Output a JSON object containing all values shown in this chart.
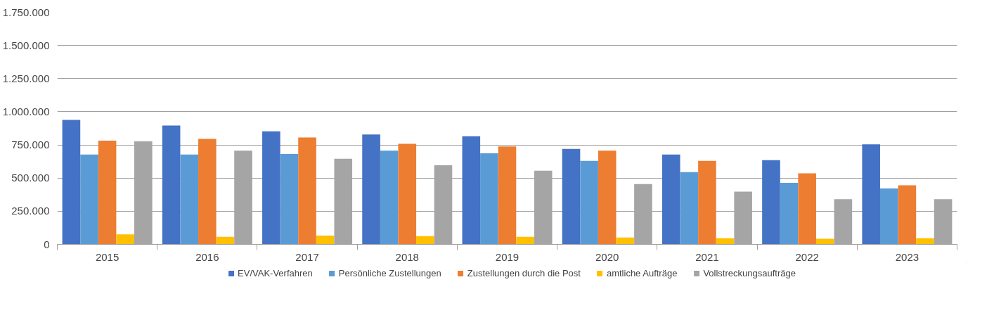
{
  "chart_data": {
    "type": "bar",
    "categories": [
      "2015",
      "2016",
      "2017",
      "2018",
      "2019",
      "2020",
      "2021",
      "2022",
      "2023"
    ],
    "series": [
      {
        "name": "EV/VAK-Verfahren",
        "color": "#4472c4",
        "values": [
          938000,
          896000,
          853000,
          829000,
          815000,
          720000,
          678000,
          635000,
          754000
        ]
      },
      {
        "name": "Persönliche Zustellungen",
        "color": "#5b9bd5",
        "values": [
          678000,
          678000,
          682000,
          706000,
          687000,
          630000,
          545000,
          464000,
          422000
        ]
      },
      {
        "name": "Zustellungen durch die Post",
        "color": "#ed7d31",
        "values": [
          782000,
          796000,
          806000,
          758000,
          739000,
          706000,
          630000,
          536000,
          445000
        ]
      },
      {
        "name": "amtliche Aufträge",
        "color": "#ffc000",
        "values": [
          76000,
          57000,
          66000,
          62000,
          57000,
          52000,
          47000,
          43000,
          47000
        ]
      },
      {
        "name": "Vollstreckungsaufträge",
        "color": "#a5a5a5",
        "values": [
          777000,
          706000,
          645000,
          597000,
          555000,
          455000,
          398000,
          341000,
          341000
        ]
      }
    ],
    "ylim": [
      0,
      1750000
    ],
    "yticks": [
      {
        "value": 0,
        "label": "0"
      },
      {
        "value": 250000,
        "label": "250.000"
      },
      {
        "value": 500000,
        "label": "500.000"
      },
      {
        "value": 750000,
        "label": "750.000"
      },
      {
        "value": 1000000,
        "label": "1.000.000"
      },
      {
        "value": 1250000,
        "label": "1.250.000"
      },
      {
        "value": 1500000,
        "label": "1.500.000"
      },
      {
        "value": 1750000,
        "label": "1.750.000"
      }
    ],
    "grid": "y",
    "legend": "bottom"
  }
}
